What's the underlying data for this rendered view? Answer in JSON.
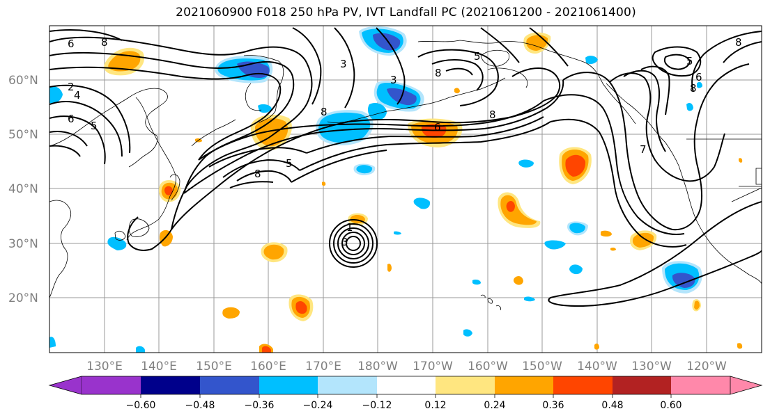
{
  "title": "2021060900 F018 250 hPa PV, IVT Landfall PC (2021061200 - 2021061400)",
  "latitude_labels": [
    "60°N",
    "50°N",
    "40°N",
    "30°N",
    "20°N"
  ],
  "longitude_labels": [
    "130°E",
    "140°E",
    "150°E",
    "160°E",
    "170°E",
    "180°W",
    "170°W",
    "160°W",
    "150°W",
    "140°W",
    "130°W",
    "120°W"
  ],
  "colorbar": {
    "colors": [
      "#9933cc",
      "#00008b",
      "#3355cc",
      "#00bfff",
      "#b3e5fc",
      "#ffffff",
      "#ffe680",
      "#ffa500",
      "#ff4500",
      "#b22222",
      "#ff88aa"
    ],
    "tick_labels": [
      "−0.60",
      "−0.48",
      "−0.36",
      "−0.24",
      "−0.12",
      "0.12",
      "0.24",
      "0.36",
      "0.48",
      "0.60"
    ]
  },
  "contour_labels": [
    "6",
    "8",
    "2",
    "4",
    "6",
    "5",
    "8",
    "3",
    "8",
    "6",
    "8",
    "5",
    "8",
    "3",
    "5",
    "6",
    "8",
    "8",
    "7",
    "1",
    "3",
    "5"
  ]
}
